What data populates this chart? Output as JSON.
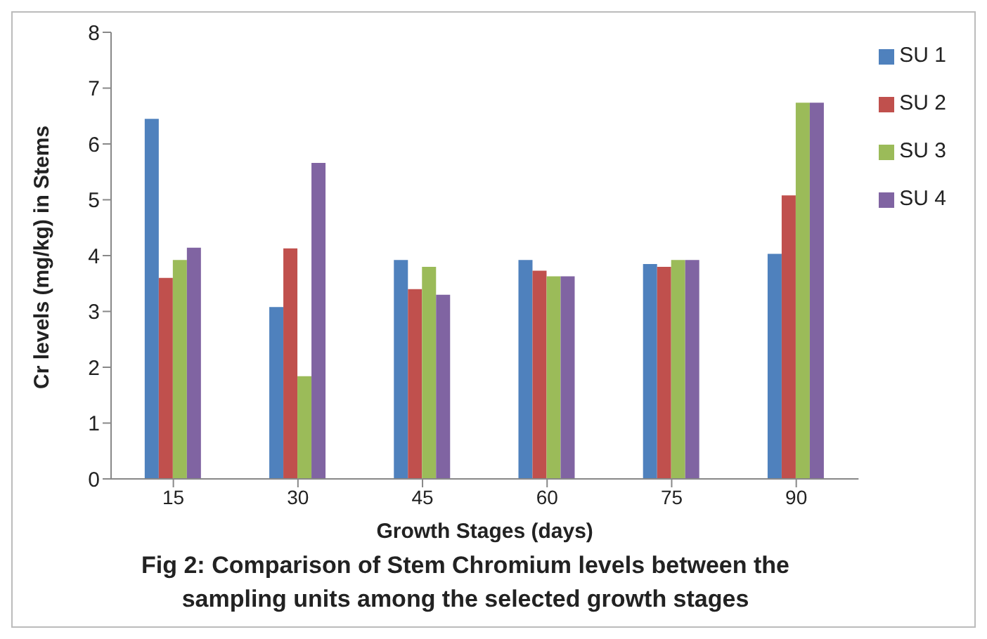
{
  "chart_data": {
    "type": "bar",
    "categories": [
      "15",
      "30",
      "45",
      "60",
      "75",
      "90"
    ],
    "series": [
      {
        "name": "SU 1",
        "color": "#4f81bd",
        "values": [
          6.45,
          3.08,
          3.92,
          3.92,
          3.85,
          4.03
        ]
      },
      {
        "name": "SU 2",
        "color": "#c0504d",
        "values": [
          3.6,
          4.13,
          3.4,
          3.73,
          3.8,
          5.08
        ]
      },
      {
        "name": "SU 3",
        "color": "#9bbb59",
        "values": [
          3.92,
          1.84,
          3.8,
          3.63,
          3.92,
          6.74
        ]
      },
      {
        "name": "SU 4",
        "color": "#8064a2",
        "values": [
          4.14,
          5.66,
          3.3,
          3.63,
          3.92,
          6.74
        ]
      }
    ],
    "xlabel": "Growth Stages (days)",
    "ylabel": "Cr levels (mg/kg) in Stems",
    "ylim": [
      0,
      8
    ],
    "yticks": [
      0,
      1,
      2,
      3,
      4,
      5,
      6,
      7,
      8
    ],
    "grid": false,
    "legend": "right",
    "annotations": [
      "Fig 2: Comparison of Stem Chromium levels between the sampling units among the selected growth stages"
    ]
  }
}
